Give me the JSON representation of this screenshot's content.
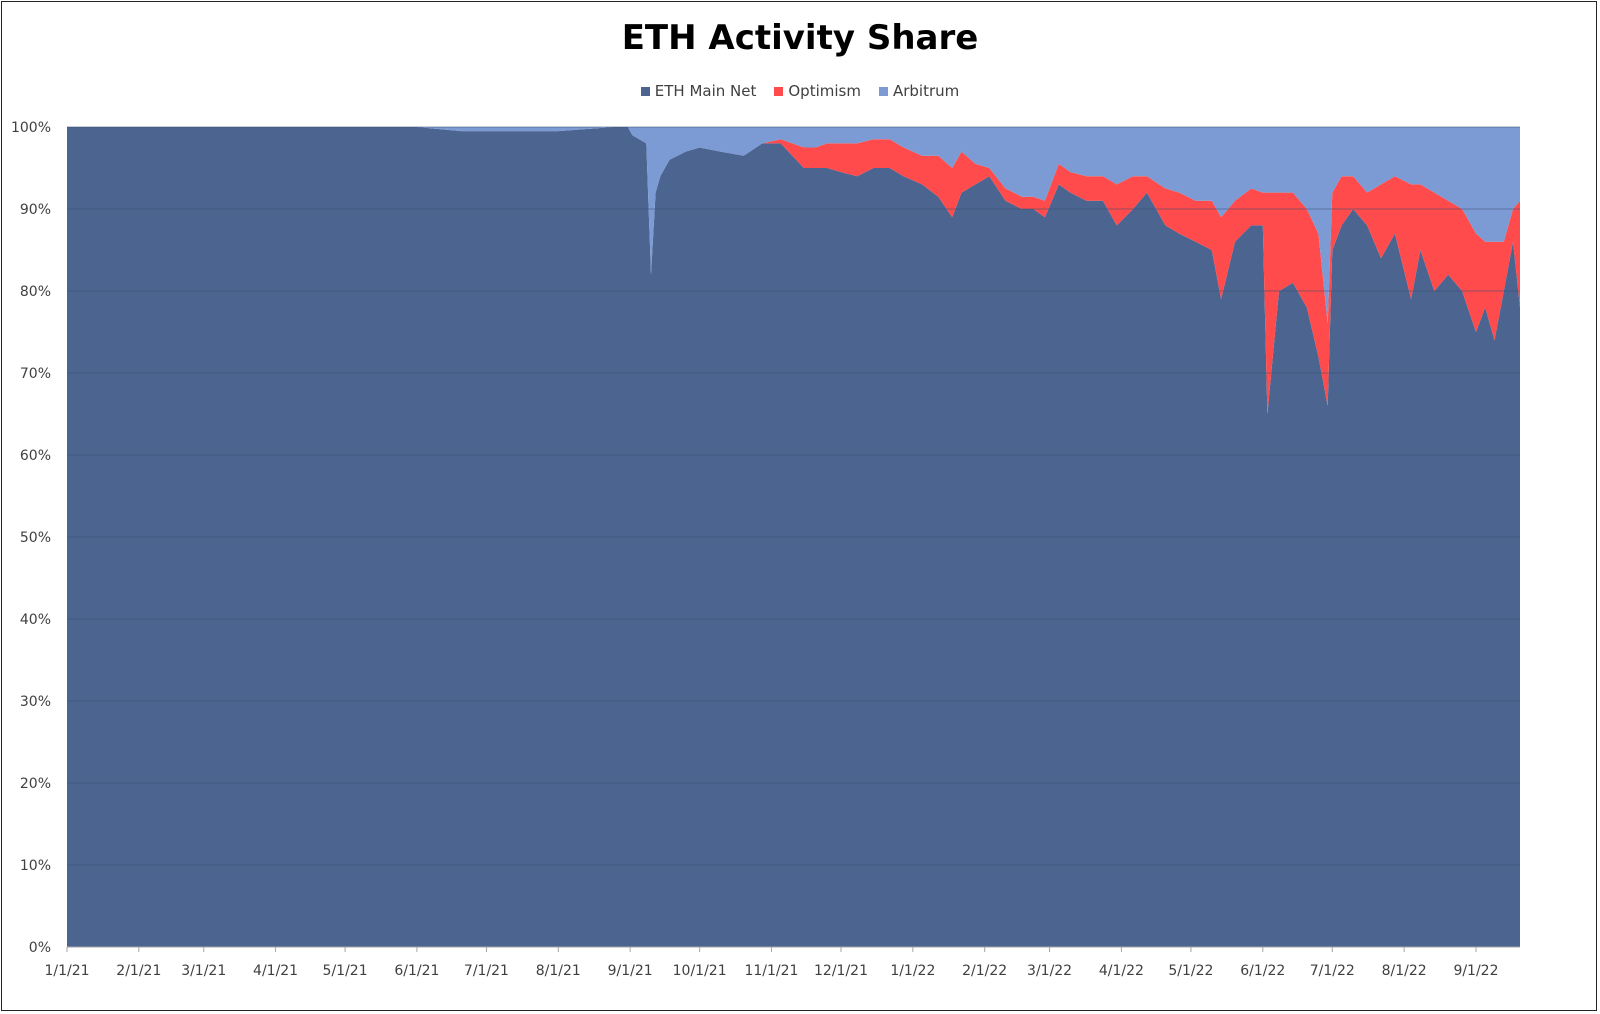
{
  "chart_data": {
    "type": "area",
    "stacking": "percent",
    "title": "ETH Activity Share",
    "legend_position": "top",
    "grid": true,
    "colors": {
      "ETH Main Net": "#4c6490",
      "Optimism": "#ff4b4b",
      "Arbitrum": "#7c9bd4"
    },
    "legend": [
      "ETH Main Net",
      "Optimism",
      "Arbitrum"
    ],
    "y_ticks": [
      "0%",
      "10%",
      "20%",
      "30%",
      "40%",
      "50%",
      "60%",
      "70%",
      "80%",
      "90%",
      "100%"
    ],
    "x_ticks": [
      "1/1/21",
      "2/1/21",
      "3/1/21",
      "4/1/21",
      "5/1/21",
      "6/1/21",
      "7/1/21",
      "8/1/21",
      "9/1/21",
      "10/1/21",
      "11/1/21",
      "12/1/21",
      "1/1/22",
      "2/1/22",
      "3/1/22",
      "4/1/22",
      "5/1/22",
      "6/1/22",
      "7/1/22",
      "8/1/22",
      "9/1/22"
    ],
    "ylim": [
      0,
      100
    ],
    "xlim": [
      "2021-01-01",
      "2022-09-20"
    ],
    "x": [
      "2021-01-01",
      "2021-06-01",
      "2021-06-20",
      "2021-08-01",
      "2021-08-25",
      "2021-08-31",
      "2021-09-02",
      "2021-09-08",
      "2021-09-10",
      "2021-09-12",
      "2021-09-14",
      "2021-09-18",
      "2021-09-25",
      "2021-10-01",
      "2021-10-10",
      "2021-10-20",
      "2021-10-28",
      "2021-11-05",
      "2021-11-10",
      "2021-11-15",
      "2021-11-20",
      "2021-11-25",
      "2021-12-01",
      "2021-12-08",
      "2021-12-15",
      "2021-12-22",
      "2021-12-28",
      "2022-01-05",
      "2022-01-12",
      "2022-01-18",
      "2022-01-22",
      "2022-01-28",
      "2022-02-03",
      "2022-02-10",
      "2022-02-17",
      "2022-02-22",
      "2022-02-27",
      "2022-03-05",
      "2022-03-10",
      "2022-03-17",
      "2022-03-24",
      "2022-03-30",
      "2022-04-06",
      "2022-04-12",
      "2022-04-20",
      "2022-04-26",
      "2022-05-03",
      "2022-05-10",
      "2022-05-14",
      "2022-05-20",
      "2022-05-27",
      "2022-06-01",
      "2022-06-03",
      "2022-06-08",
      "2022-06-14",
      "2022-06-20",
      "2022-06-25",
      "2022-06-29",
      "2022-07-01",
      "2022-07-05",
      "2022-07-10",
      "2022-07-16",
      "2022-07-22",
      "2022-07-28",
      "2022-08-04",
      "2022-08-08",
      "2022-08-14",
      "2022-08-20",
      "2022-08-26",
      "2022-09-01",
      "2022-09-05",
      "2022-09-09",
      "2022-09-13",
      "2022-09-17",
      "2022-09-20"
    ],
    "series": [
      {
        "name": "ETH Main Net",
        "values": [
          100,
          100,
          99.5,
          99.5,
          100,
          100,
          99,
          98,
          82,
          92,
          94,
          96,
          97,
          97.5,
          97,
          96.5,
          98,
          98,
          96.5,
          95,
          95,
          95,
          94.5,
          94,
          95,
          95,
          94,
          93,
          91.5,
          89,
          92,
          93,
          94,
          91,
          90,
          90,
          89,
          93,
          92,
          91,
          91,
          88,
          90,
          92,
          88,
          87,
          86,
          85,
          79,
          86,
          88,
          88,
          65,
          80,
          81,
          78,
          72,
          66,
          85,
          88,
          90,
          88,
          84,
          87,
          79,
          85,
          80,
          82,
          80,
          75,
          78,
          74,
          80,
          86,
          78
        ]
      },
      {
        "name": "Optimism",
        "values": [
          0,
          0,
          0,
          0,
          0,
          0,
          0,
          0,
          0,
          0,
          0,
          0,
          0,
          0,
          0,
          0,
          0,
          0.5,
          1.5,
          2.5,
          2.5,
          3,
          3.5,
          4,
          3.5,
          3.5,
          3.5,
          3.5,
          5,
          6,
          5,
          2.5,
          1,
          1.5,
          1.5,
          1.5,
          2,
          2.5,
          2.5,
          3,
          3,
          5,
          4,
          2,
          4.5,
          5,
          5,
          6,
          10,
          5,
          4.5,
          4,
          27,
          12,
          11,
          12,
          15,
          10,
          7,
          6,
          4,
          4,
          9,
          7,
          14,
          8,
          12,
          9,
          10,
          12,
          8,
          12,
          6,
          4,
          13
        ]
      },
      {
        "name": "Arbitrum",
        "values": [
          0,
          0,
          0.5,
          0.5,
          0,
          0,
          1,
          2,
          18,
          8,
          6,
          4,
          3,
          2.5,
          3,
          3.5,
          2,
          1.5,
          2,
          2.5,
          2.5,
          2,
          2,
          2,
          1.5,
          1.5,
          2.5,
          3.5,
          3.5,
          5,
          3,
          4.5,
          5,
          7.5,
          8.5,
          8.5,
          9,
          4.5,
          5.5,
          6,
          6,
          7,
          6,
          6,
          7.5,
          8,
          9,
          9,
          11,
          9,
          7.5,
          8,
          8,
          8,
          8,
          10,
          13,
          24,
          8,
          6,
          6,
          8,
          7,
          6,
          7,
          7,
          8,
          9,
          10,
          13,
          14,
          14,
          14,
          10,
          9
        ]
      }
    ]
  }
}
